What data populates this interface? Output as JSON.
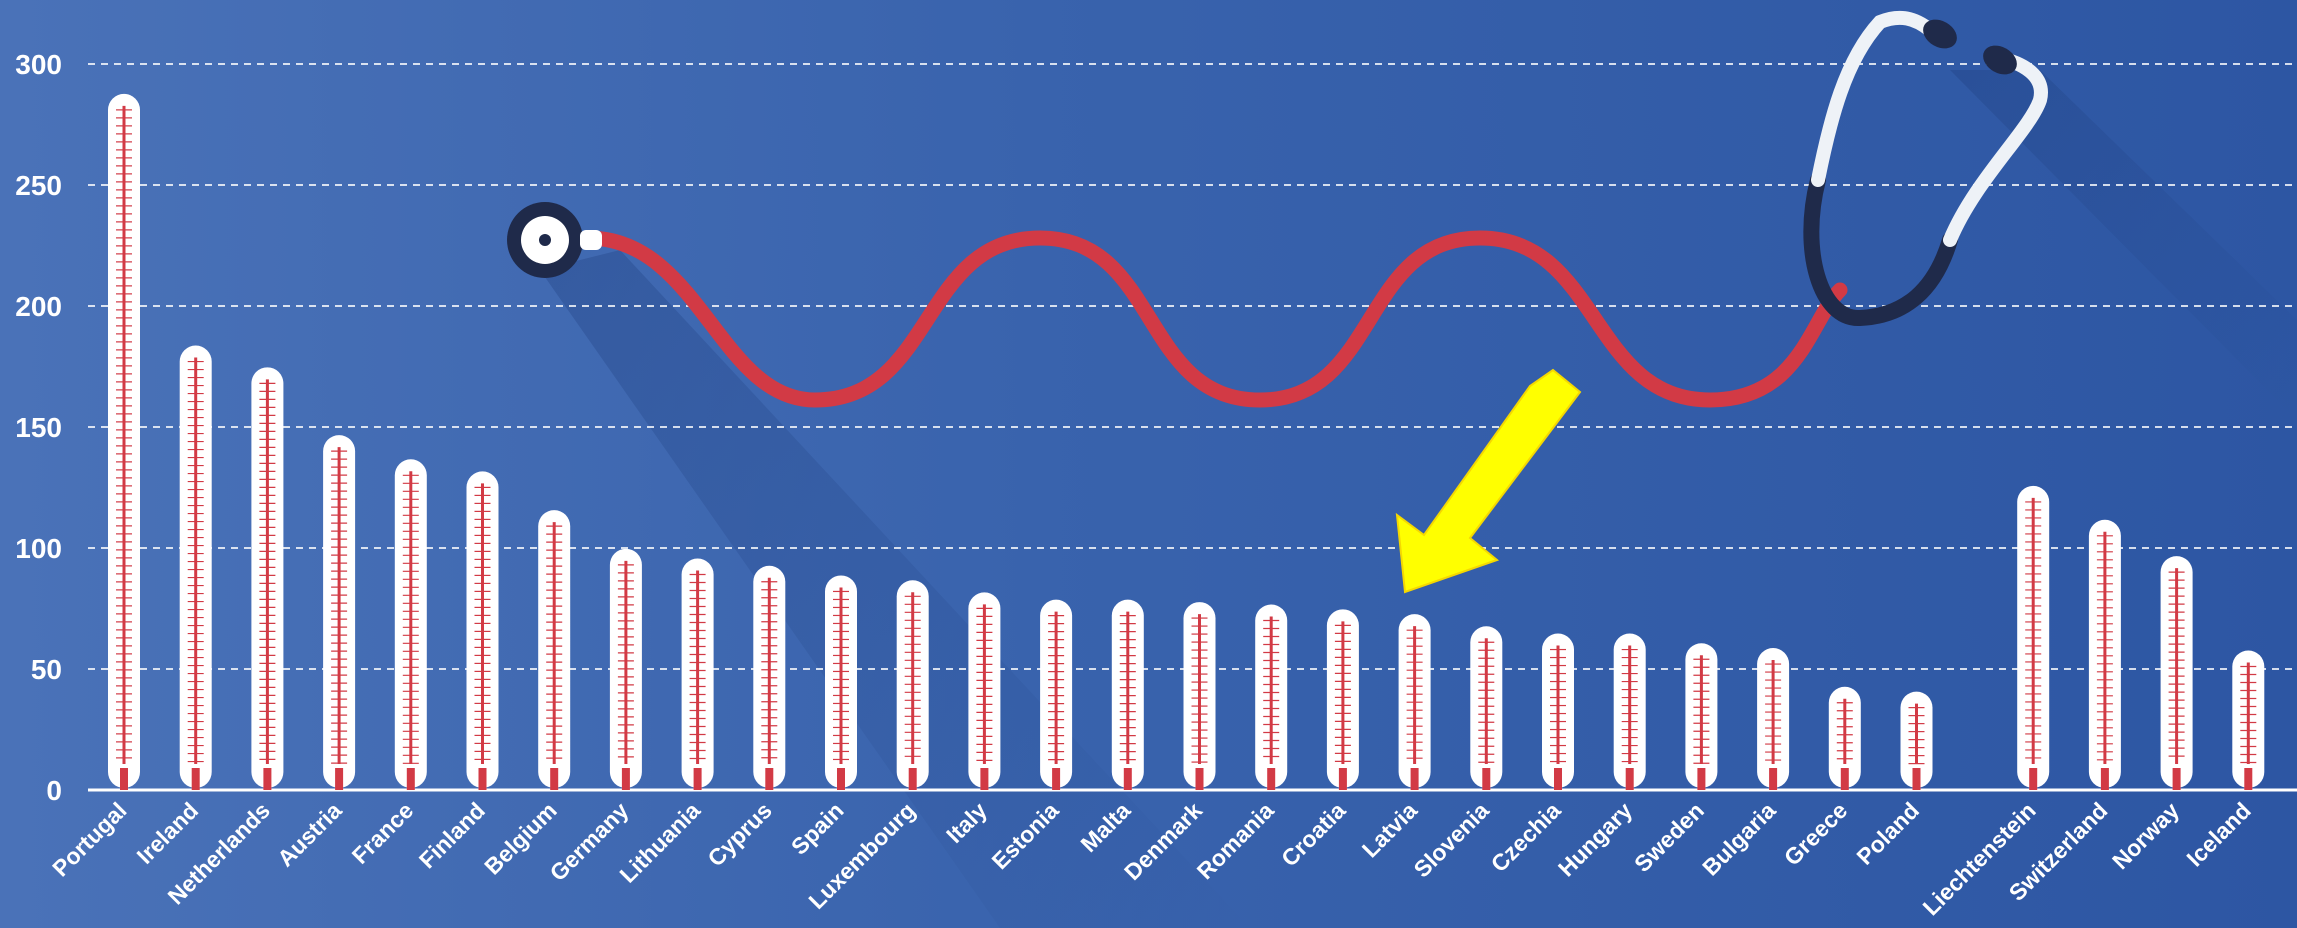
{
  "chart_data": {
    "type": "bar",
    "categories": [
      "Portugal",
      "Ireland",
      "Netherlands",
      "Austria",
      "France",
      "Finland",
      "Belgium",
      "Germany",
      "Lithuania",
      "Cyprus",
      "Spain",
      "Luxembourg",
      "Italy",
      "Estonia",
      "Malta",
      "Denmark",
      "Romania",
      "Croatia",
      "Latvia",
      "Slovenia",
      "Czechia",
      "Hungary",
      "Sweden",
      "Bulgaria",
      "Greece",
      "Poland",
      "Liechtenstein",
      "Switzerland",
      "Norway",
      "Iceland"
    ],
    "values": [
      286,
      182,
      173,
      145,
      135,
      130,
      114,
      98,
      94,
      91,
      87,
      85,
      80,
      77,
      77,
      76,
      75,
      73,
      71,
      66,
      63,
      63,
      59,
      57,
      41,
      39,
      124,
      110,
      95,
      56
    ],
    "yticks": [
      0,
      50,
      100,
      150,
      200,
      250,
      300
    ],
    "ylim": [
      0,
      310
    ],
    "grid": true,
    "group_gap_before": "Liechtenstein",
    "highlight": "Latvia",
    "title": "",
    "xlabel": "",
    "ylabel": ""
  },
  "colors": {
    "background": "#3a64ae",
    "thermometer_body": "#ffffff",
    "mercury": "#d23a45",
    "stethoscope_tube": "#d23a45",
    "stethoscope_dark": "#1f2a4a",
    "arrow": "#ffff00"
  },
  "decorations": [
    "stethoscope-illustration",
    "highlight-arrow-icon"
  ]
}
